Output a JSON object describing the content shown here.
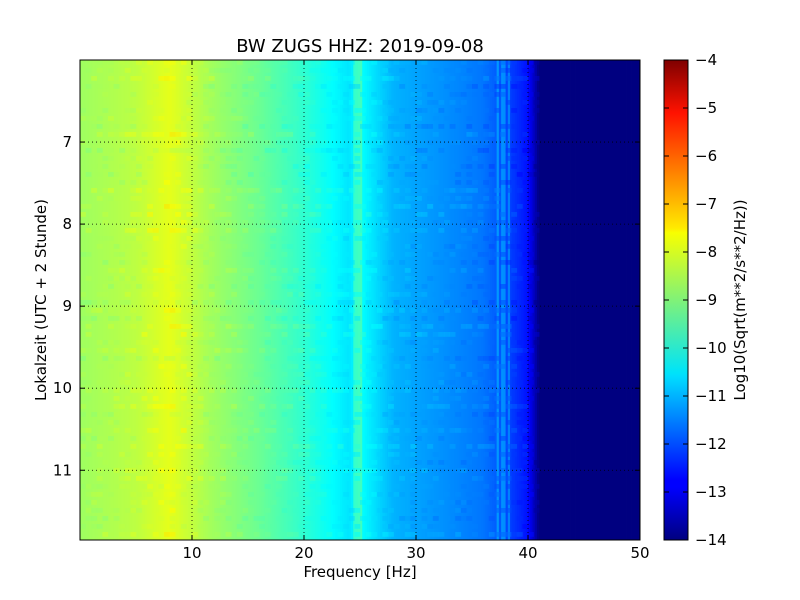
{
  "chart_data": {
    "type": "heatmap",
    "title": "BW ZUGS HHZ: 2019-09-08",
    "xlabel": "Frequency [Hz]",
    "ylabel": "Lokalzeit (UTC + 2 Stunde)",
    "xlim": [
      0,
      50
    ],
    "ylim": [
      6.0,
      11.85
    ],
    "y_inverted": true,
    "x_ticks": [
      10,
      20,
      30,
      40,
      50
    ],
    "y_ticks": [
      7,
      8,
      9,
      10,
      11
    ],
    "grid": true,
    "colormap": "jet",
    "colorbar": {
      "label": "Log10(Sqrt(m**2/s**2/Hz))",
      "range": [
        -14,
        -4
      ],
      "ticks": [
        -4,
        -5,
        -6,
        -7,
        -8,
        -9,
        -10,
        -11,
        -12,
        -13,
        -14
      ]
    },
    "spectral_profile": {
      "frequency_hz": [
        0,
        5,
        8,
        12,
        16,
        20,
        24,
        25,
        28,
        32,
        36,
        38,
        40,
        41,
        45,
        50
      ],
      "log10_amplitude": [
        -8.7,
        -8.4,
        -8.0,
        -8.7,
        -9.2,
        -9.8,
        -10.5,
        -10.2,
        -11.0,
        -11.3,
        -11.6,
        -12.0,
        -12.6,
        -14.0,
        -14.0,
        -14.0
      ]
    },
    "spectral_lines_hz": [
      24.6,
      25.0,
      37.3,
      37.8,
      38.3
    ]
  }
}
